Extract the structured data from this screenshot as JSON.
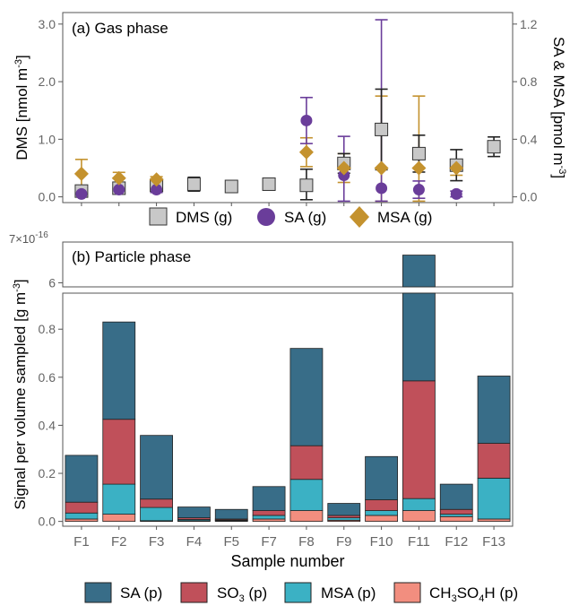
{
  "chart_data": [
    {
      "panel": "a",
      "type": "scatter",
      "title": "(a) Gas phase",
      "ylabel": "DMS [nmol m⁻³]",
      "ylabel_main": "DMS [nmol m",
      "ylabel_sup": "-3",
      "ylabel_end": "]",
      "y2label_main": "SA & MSA [pmol m",
      "y2label_sup": "-3",
      "y2label_end": "]",
      "ylim": [
        -0.1,
        3.2
      ],
      "y2lim": [
        -0.04,
        1.28
      ],
      "yticks": [
        "0.0",
        "1.0",
        "2.0",
        "3.0"
      ],
      "y2ticks": [
        "0.0",
        "0.4",
        "0.8",
        "1.2"
      ],
      "categories": [
        "F1",
        "F2",
        "F3",
        "F4",
        "F5",
        "F7",
        "F8",
        "F9",
        "F10",
        "F11",
        "F12",
        "F13"
      ],
      "legend": [
        "DMS (g)",
        "SA (g)",
        "MSA (g)"
      ],
      "series": [
        {
          "name": "DMS (g)",
          "axis": "left",
          "color": "#c8c8c8",
          "marker": "square",
          "values": [
            0.1,
            0.15,
            0.2,
            0.22,
            0.18,
            0.22,
            0.2,
            0.58,
            1.17,
            0.75,
            0.55,
            0.87
          ],
          "err": [
            0.06,
            0.06,
            0.08,
            0.12,
            0.1,
            0.1,
            0.28,
            0.17,
            0.7,
            0.32,
            0.27,
            0.17
          ]
        },
        {
          "name": "SA (g)",
          "axis": "right",
          "color": "#6a3d9a",
          "marker": "circle",
          "values": [
            0.02,
            0.05,
            0.05,
            null,
            null,
            null,
            0.53,
            0.15,
            0.06,
            0.05,
            0.02,
            null
          ],
          "err": [
            0.02,
            0.02,
            0.02,
            null,
            null,
            null,
            0.16,
            0.27,
            1.17,
            0.06,
            0.02,
            null
          ]
        },
        {
          "name": "MSA (g)",
          "axis": "right",
          "color": "#c4922e",
          "marker": "diamond",
          "values": [
            0.16,
            0.13,
            0.12,
            null,
            null,
            null,
            0.31,
            0.2,
            0.2,
            0.2,
            0.2,
            null
          ],
          "err": [
            0.1,
            0.04,
            0.02,
            null,
            null,
            null,
            0.1,
            0.1,
            0.5,
            0.5,
            0.05,
            null
          ]
        }
      ]
    },
    {
      "panel": "b",
      "type": "bar",
      "stacked": true,
      "title": "(b) Particle phase",
      "xlabel": "Sample number",
      "ylabel_main": "Signal per volume sampled [g m",
      "ylabel_sup": "-3",
      "ylabel_end": "]",
      "multiplier_base": "7×10",
      "multiplier_exp": "-16",
      "axis_break": true,
      "ylim_lower": [
        -0.02,
        0.95
      ],
      "ylim_upper": [
        5.9,
        7.0
      ],
      "yticks_lower": [
        "0.0",
        "0.2",
        "0.4",
        "0.6",
        "0.8"
      ],
      "yticks_upper": [
        "6"
      ],
      "categories": [
        "F1",
        "F2",
        "F3",
        "F4",
        "F5",
        "F7",
        "F8",
        "F9",
        "F10",
        "F11",
        "F12",
        "F13"
      ],
      "legend": [
        {
          "label": "SA (p)"
        },
        {
          "label": "SO₃ (p)",
          "main": "SO",
          "sub": "3",
          "end": " (p)"
        },
        {
          "label": "MSA (p)"
        },
        {
          "label": "CH₃SO₄H (p)",
          "main": "CH",
          "sub": "3",
          "mid": "SO",
          "sub2": "4",
          "end": "H (p)"
        }
      ],
      "series": [
        {
          "name": "CH3SO4H (p)",
          "color": "#f28e7f",
          "values": [
            0.01,
            0.03,
            0.003,
            0.003,
            0.003,
            0.01,
            0.045,
            0.005,
            0.025,
            0.045,
            0.02,
            0.01
          ]
        },
        {
          "name": "MSA (p)",
          "color": "#3bb1c4",
          "values": [
            0.025,
            0.125,
            0.055,
            0.005,
            0.003,
            0.015,
            0.13,
            0.01,
            0.02,
            0.05,
            0.01,
            0.17
          ]
        },
        {
          "name": "SO3 (p)",
          "color": "#c0505a",
          "values": [
            0.045,
            0.27,
            0.035,
            0.007,
            0.004,
            0.02,
            0.14,
            0.01,
            0.045,
            0.49,
            0.02,
            0.145
          ]
        },
        {
          "name": "SA (p)",
          "color": "#386d88",
          "values": [
            0.195,
            0.405,
            0.265,
            0.045,
            0.04,
            0.1,
            0.405,
            0.05,
            0.18,
            6.095,
            0.105,
            0.28
          ]
        }
      ]
    }
  ]
}
